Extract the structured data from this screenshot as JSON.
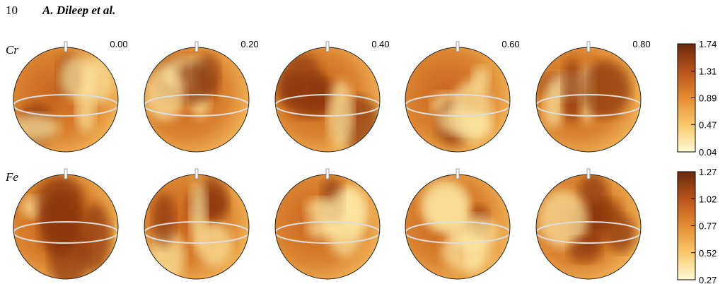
{
  "header": {
    "page_number": "10",
    "authors": "A. Dileep et al."
  },
  "phases": [
    "0.00",
    "0.20",
    "0.40",
    "0.60",
    "0.80"
  ],
  "panels": [
    {
      "element": "Cr",
      "colorbar_ticks": [
        1.74,
        1.31,
        0.89,
        0.47,
        0.04
      ]
    },
    {
      "element": "Fe",
      "colorbar_ticks": [
        1.27,
        1.02,
        0.77,
        0.52,
        0.27
      ]
    }
  ]
}
